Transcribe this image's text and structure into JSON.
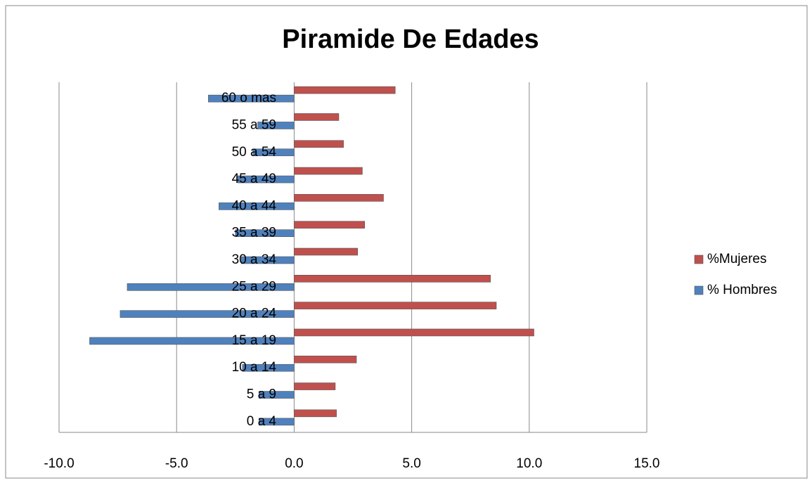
{
  "chart_data": {
    "type": "bar",
    "orientation": "horizontal",
    "title": "Piramide De Edades",
    "categories": [
      "0 a 4",
      "5 a 9",
      "10 a 14",
      "15 a 19",
      "20 a 24",
      "25 a 29",
      "30 a 34",
      "35 a 39",
      "40 a 44",
      "45 a 49",
      "50 a 54",
      "55 a 59",
      "60 o mas"
    ],
    "series": [
      {
        "name": "%Mujeres",
        "color": "#c0504d",
        "values": [
          1.8,
          1.75,
          2.65,
          10.2,
          8.6,
          8.35,
          2.7,
          3.0,
          3.8,
          2.9,
          2.1,
          1.9,
          4.3
        ]
      },
      {
        "name": "% Hombres",
        "color": "#4f81bd",
        "values": [
          -1.5,
          -1.5,
          -2.2,
          -8.7,
          -7.4,
          -7.1,
          -2.25,
          -2.5,
          -3.2,
          -2.4,
          -1.75,
          -1.55,
          -3.65
        ]
      }
    ],
    "xlim": [
      -10,
      15
    ],
    "xticks": [
      {
        "value": -10,
        "label": "-10.0"
      },
      {
        "value": -5,
        "label": "-5.0"
      },
      {
        "value": 0,
        "label": "0.0"
      },
      {
        "value": 5,
        "label": "5.0"
      },
      {
        "value": 10,
        "label": "10.0"
      },
      {
        "value": 15,
        "label": "15.0"
      }
    ],
    "grid": true,
    "legend": "right"
  }
}
